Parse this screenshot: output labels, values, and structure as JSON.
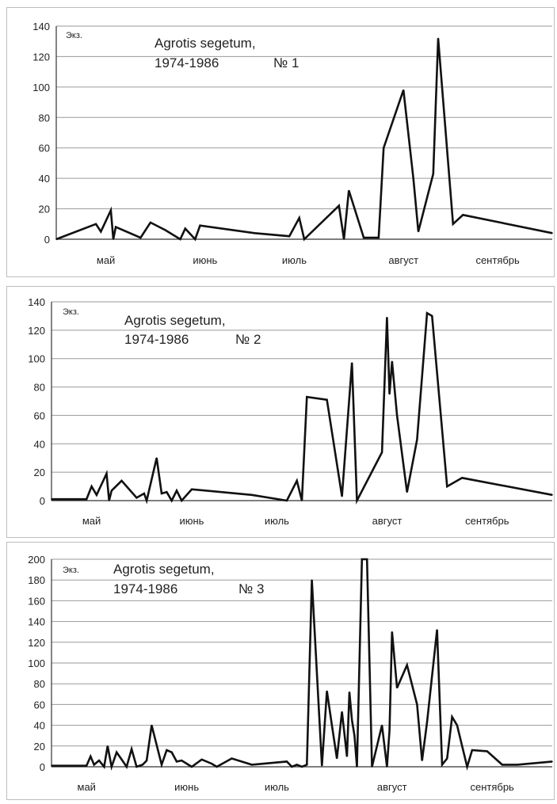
{
  "chart_data": [
    {
      "type": "line",
      "ylabel": "Экз.",
      "annotation": {
        "line1": "Agrotis segetum,",
        "line2": "1974-1986",
        "number": "№ 1"
      },
      "ylim": [
        0,
        140
      ],
      "yticks": [
        0,
        20,
        40,
        60,
        80,
        100,
        120,
        140
      ],
      "xlim": [
        0,
        100
      ],
      "month_labels": [
        {
          "x": 10,
          "label": "май"
        },
        {
          "x": 30,
          "label": "июнь"
        },
        {
          "x": 48,
          "label": "июль"
        },
        {
          "x": 70,
          "label": "август"
        },
        {
          "x": 89,
          "label": "сентябрь"
        }
      ],
      "grid": true,
      "series": [
        {
          "x": [
            0,
            8,
            9,
            11,
            11.5,
            12,
            17,
            19,
            22,
            25,
            26,
            28,
            29,
            40,
            47,
            49,
            50,
            57,
            58,
            59,
            62,
            65,
            66,
            70,
            72,
            73,
            76,
            77,
            80,
            82,
            100
          ],
          "y": [
            0,
            10,
            5,
            19,
            0,
            8,
            1,
            11,
            6,
            0,
            7,
            0,
            9,
            4,
            2,
            14,
            0,
            22,
            0,
            32,
            1,
            1,
            60,
            98,
            40,
            5,
            43,
            132,
            10,
            16,
            4
          ]
        }
      ]
    },
    {
      "type": "line",
      "ylabel": "Экз.",
      "annotation": {
        "line1": "Agrotis segetum,",
        "line2": "1974-1986",
        "number": "№ 2"
      },
      "ylim": [
        0,
        140
      ],
      "yticks": [
        0,
        20,
        40,
        60,
        80,
        100,
        120,
        140
      ],
      "xlim": [
        0,
        100
      ],
      "month_labels": [
        {
          "x": 8,
          "label": "май"
        },
        {
          "x": 28,
          "label": "июнь"
        },
        {
          "x": 45,
          "label": "июль"
        },
        {
          "x": 67,
          "label": "август"
        },
        {
          "x": 87,
          "label": "сентябрь"
        }
      ],
      "grid": true,
      "series": [
        {
          "x": [
            0,
            7,
            8,
            9,
            11,
            11.5,
            12,
            14,
            17,
            18.5,
            19,
            21,
            22,
            23,
            24,
            25,
            26,
            28,
            40,
            47,
            49,
            50,
            51,
            55,
            58,
            60,
            61,
            66,
            67,
            67.5,
            68,
            69,
            71,
            73,
            75,
            76,
            79,
            82,
            100
          ],
          "y": [
            1,
            1,
            10,
            4,
            19,
            0,
            7,
            14,
            2,
            5,
            0,
            30,
            5,
            6,
            0,
            7,
            0,
            8,
            4,
            0,
            14,
            0,
            73,
            71,
            3,
            97,
            0,
            34,
            129,
            75,
            98,
            60,
            6,
            43,
            132,
            130,
            10,
            16,
            4
          ]
        }
      ]
    },
    {
      "type": "line",
      "ylabel": "Экз.",
      "annotation": {
        "line1": "Agrotis segetum,",
        "line2": "1974-1986",
        "number": "№ 3"
      },
      "ylim": [
        0,
        200
      ],
      "yticks": [
        0,
        20,
        40,
        60,
        80,
        100,
        120,
        140,
        160,
        180,
        200
      ],
      "xlim": [
        0,
        100
      ],
      "month_labels": [
        {
          "x": 7,
          "label": "май"
        },
        {
          "x": 27,
          "label": "июнь"
        },
        {
          "x": 45,
          "label": "июль"
        },
        {
          "x": 68,
          "label": "август"
        },
        {
          "x": 88,
          "label": "сентябрь"
        }
      ],
      "grid": true,
      "series": [
        {
          "x": [
            0,
            7,
            7.8,
            8.5,
            9.5,
            10.5,
            11.2,
            12,
            13,
            14,
            15,
            16,
            17,
            18.2,
            19,
            20,
            22,
            23,
            24,
            25,
            26,
            28,
            30,
            32,
            33,
            36,
            40,
            47,
            48,
            49,
            50,
            51,
            52,
            54,
            55,
            56,
            57,
            58,
            59,
            59.5,
            60,
            60.5,
            61,
            62,
            63,
            64,
            66,
            67,
            67.5,
            68,
            69,
            71,
            73,
            74,
            75,
            77,
            78,
            79,
            80,
            81,
            83,
            84,
            87,
            90,
            93,
            100
          ],
          "y": [
            1,
            1,
            10,
            2,
            6,
            0,
            20,
            0,
            14,
            7,
            0,
            17,
            0,
            2,
            6,
            40,
            2,
            16,
            14,
            5,
            6,
            0,
            7,
            3,
            0,
            8,
            2,
            5,
            0,
            2,
            0,
            2,
            180,
            1,
            73,
            40,
            8,
            53,
            10,
            72,
            45,
            30,
            0,
            200,
            200,
            0,
            40,
            0,
            35,
            130,
            76,
            98,
            60,
            6,
            43,
            132,
            2,
            8,
            48,
            40,
            0,
            16,
            15,
            2,
            2,
            5
          ]
        }
      ]
    }
  ]
}
